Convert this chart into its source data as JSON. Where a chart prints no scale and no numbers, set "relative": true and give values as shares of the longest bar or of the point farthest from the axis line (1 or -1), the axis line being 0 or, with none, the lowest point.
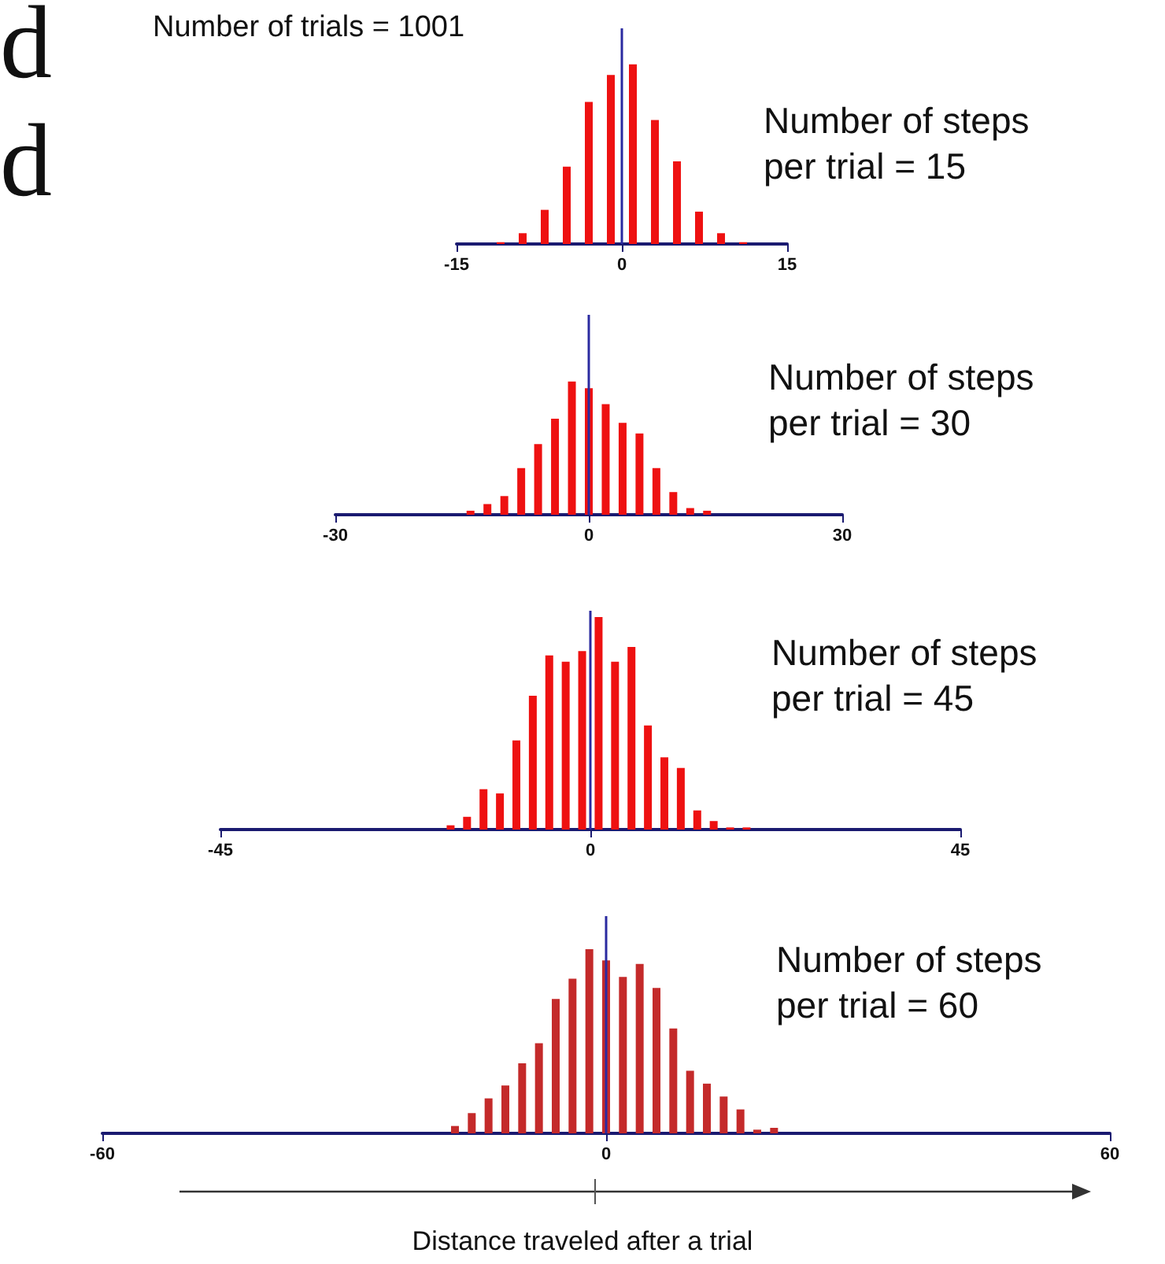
{
  "chart_data": [
    {
      "type": "bar",
      "title": "Number of trials = 1001",
      "subtitle": "Number of steps per trial = 15",
      "relative": true,
      "color": "#ee1111",
      "x": [
        -11,
        -9,
        -7,
        -5,
        -3,
        -1,
        1,
        3,
        5,
        7,
        9,
        11
      ],
      "values": [
        0.01,
        0.06,
        0.19,
        0.43,
        0.79,
        0.94,
        1,
        0.69,
        0.46,
        0.18,
        0.06,
        0.01
      ],
      "xlim": [
        -15,
        15
      ],
      "xticks": [
        -15,
        0,
        15
      ],
      "ref_lines": [
        {
          "axis": "x",
          "value": 0,
          "color": "#2a2aa0"
        }
      ],
      "annotations": [
        "d",
        "d"
      ]
    },
    {
      "type": "bar",
      "subtitle": "Number of steps per trial = 30",
      "relative": true,
      "color": "#ee1111",
      "x": [
        -14,
        -12,
        -10,
        -8,
        -6,
        -4,
        -2,
        0,
        2,
        4,
        6,
        8,
        10,
        12,
        14
      ],
      "values": [
        0.03,
        0.08,
        0.14,
        0.35,
        0.53,
        0.72,
        1,
        0.95,
        0.83,
        0.69,
        0.61,
        0.35,
        0.17,
        0.05,
        0.03
      ],
      "xlim": [
        -30,
        30
      ],
      "xticks": [
        -30,
        0,
        30
      ],
      "ref_lines": [
        {
          "axis": "x",
          "value": 0,
          "color": "#2a2aa0"
        }
      ]
    },
    {
      "type": "bar",
      "subtitle": "Number of steps per trial = 45",
      "relative": true,
      "color": "#ee1111",
      "x": [
        -17,
        -15,
        -13,
        -11,
        -9,
        -7,
        -5,
        -3,
        -1,
        1,
        3,
        5,
        7,
        9,
        11,
        13,
        15,
        17,
        19
      ],
      "values": [
        0.02,
        0.06,
        0.19,
        0.17,
        0.42,
        0.63,
        0.82,
        0.79,
        0.84,
        1,
        0.79,
        0.86,
        0.49,
        0.34,
        0.29,
        0.09,
        0.04,
        0.01,
        0.01
      ],
      "xlim": [
        -45,
        45
      ],
      "xticks": [
        -45,
        0,
        45
      ],
      "ref_lines": [
        {
          "axis": "x",
          "value": 0,
          "color": "#2a2aa0"
        }
      ]
    },
    {
      "type": "bar",
      "subtitle": "Number of steps per trial = 60",
      "xlabel": "Distance traveled after a trial",
      "relative": true,
      "color": "#c42a2a",
      "x": [
        -18,
        -16,
        -14,
        -12,
        -10,
        -8,
        -6,
        -4,
        -2,
        0,
        2,
        4,
        6,
        8,
        10,
        12,
        14,
        16,
        18,
        20
      ],
      "values": [
        0.04,
        0.11,
        0.19,
        0.26,
        0.38,
        0.49,
        0.73,
        0.84,
        1,
        0.94,
        0.85,
        0.92,
        0.79,
        0.57,
        0.34,
        0.27,
        0.2,
        0.13,
        0.02,
        0.03
      ],
      "xlim": [
        -60,
        60
      ],
      "xticks": [
        -60,
        0,
        60
      ],
      "ref_lines": [
        {
          "axis": "x",
          "value": 0,
          "color": "#2a2aa0"
        }
      ]
    }
  ]
}
